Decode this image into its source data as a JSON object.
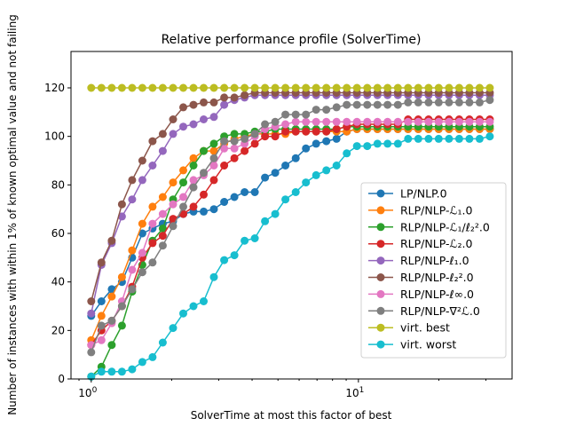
{
  "chart_data": {
    "type": "line",
    "title": "Relative performance profile (SolverTime)",
    "xlabel": "SolverTime at most this factor of best",
    "ylabel": "Number of instances with within 1% of known optimal value and not failing",
    "xscale": "log",
    "xlim": [
      0.84,
      37.6
    ],
    "ylim": [
      0,
      135
    ],
    "x_ticks": [
      {
        "value": 1,
        "label": "10",
        "exp": "0"
      },
      {
        "value": 10,
        "label": "10",
        "exp": "1"
      }
    ],
    "y_ticks": [
      0,
      20,
      40,
      60,
      80,
      100,
      120
    ],
    "grid": false,
    "legend_position": "lower-right",
    "x": [
      1.0,
      1.092,
      1.193,
      1.303,
      1.423,
      1.554,
      1.697,
      1.853,
      2.024,
      2.21,
      2.414,
      2.636,
      2.879,
      3.144,
      3.433,
      3.749,
      4.094,
      4.472,
      4.883,
      5.333,
      5.824,
      6.36,
      6.945,
      7.585,
      8.283,
      9.045,
      9.878,
      10.79,
      11.78,
      12.86,
      14.05,
      15.34,
      16.75,
      18.3,
      19.98,
      21.82,
      23.83,
      26.02,
      28.42,
      31.03
    ],
    "series": [
      {
        "name": "LP/NLP.0",
        "color": "#1f77b4",
        "values": [
          26,
          32,
          37,
          40,
          50,
          60,
          62,
          64,
          65,
          68,
          69,
          69,
          70,
          73,
          75,
          77,
          77,
          83,
          85,
          88,
          91,
          95,
          97,
          98,
          99,
          102,
          103,
          103,
          103,
          103,
          103,
          103,
          103,
          103,
          103,
          103,
          103,
          103,
          103,
          103
        ]
      },
      {
        "name": "RLP/NLP-ℒ₁.0",
        "color": "#ff7f0e",
        "values": [
          16,
          26,
          34,
          42,
          53,
          64,
          71,
          75,
          81,
          86,
          91,
          94,
          94,
          97,
          99,
          100,
          101,
          101,
          101,
          101,
          102,
          102,
          102,
          102,
          102,
          102,
          103,
          103,
          103,
          103,
          103,
          103,
          103,
          103,
          103,
          103,
          103,
          103,
          103,
          103
        ]
      },
      {
        "name": "RLP/NLP-ℒ₁/ℓ₂².0",
        "color": "#2ca02c",
        "values": [
          1,
          5,
          14,
          22,
          36,
          47,
          57,
          62,
          74,
          81,
          88,
          94,
          97,
          100,
          101,
          101,
          102,
          102,
          103,
          103,
          103,
          103,
          103,
          103,
          103,
          104,
          104,
          104,
          104,
          104,
          104,
          104,
          104,
          104,
          104,
          104,
          104,
          104,
          104,
          104
        ]
      },
      {
        "name": "RLP/NLP-ℒ₂.0",
        "color": "#d62728",
        "values": [
          14,
          20,
          24,
          30,
          38,
          50,
          56,
          59,
          66,
          68,
          71,
          76,
          82,
          88,
          91,
          94,
          97,
          100,
          100,
          102,
          102,
          102,
          102,
          102,
          103,
          104,
          105,
          105,
          105,
          105,
          105,
          107,
          107,
          107,
          107,
          107,
          107,
          107,
          107,
          107
        ]
      },
      {
        "name": "RLP/NLP-ℓ₁.0",
        "color": "#9467bd",
        "values": [
          27,
          47,
          56,
          67,
          74,
          82,
          88,
          94,
          101,
          104,
          105,
          107,
          108,
          113,
          115,
          116,
          117,
          117,
          117,
          117,
          117,
          117,
          117,
          117,
          117,
          117,
          117,
          117,
          117,
          117,
          117,
          117,
          117,
          117,
          117,
          117,
          117,
          117,
          117,
          117
        ]
      },
      {
        "name": "RLP/NLP-ℓ₂².0",
        "color": "#8c564b",
        "values": [
          32,
          48,
          57,
          72,
          82,
          90,
          98,
          101,
          107,
          112,
          113,
          114,
          114,
          116,
          116,
          117,
          118,
          118,
          118,
          118,
          118,
          118,
          118,
          118,
          118,
          118,
          118,
          118,
          118,
          118,
          118,
          118,
          118,
          118,
          118,
          118,
          118,
          118,
          118,
          118
        ]
      },
      {
        "name": "RLP/NLP-ℓ∞.0",
        "color": "#e377c2",
        "values": [
          14,
          16,
          23,
          32,
          45,
          52,
          64,
          68,
          72,
          75,
          82,
          84,
          88,
          95,
          95,
          97,
          100,
          103,
          104,
          105,
          106,
          106,
          106,
          106,
          106,
          106,
          106,
          106,
          106,
          106,
          106,
          106,
          106,
          106,
          106,
          106,
          106,
          106,
          106,
          106
        ]
      },
      {
        "name": "RLP/NLP-∇²ℒ.0",
        "color": "#7f7f7f",
        "values": [
          11,
          22,
          24,
          30,
          37,
          44,
          48,
          55,
          63,
          71,
          79,
          85,
          91,
          98,
          98,
          99,
          101,
          105,
          106,
          109,
          109,
          109,
          111,
          111,
          112,
          113,
          113,
          113,
          113,
          113,
          113,
          114,
          114,
          114,
          114,
          114,
          114,
          114,
          114,
          115
        ]
      },
      {
        "name": "virt. best",
        "color": "#bcbd22",
        "values": [
          120,
          120,
          120,
          120,
          120,
          120,
          120,
          120,
          120,
          120,
          120,
          120,
          120,
          120,
          120,
          120,
          120,
          120,
          120,
          120,
          120,
          120,
          120,
          120,
          120,
          120,
          120,
          120,
          120,
          120,
          120,
          120,
          120,
          120,
          120,
          120,
          120,
          120,
          120,
          120
        ]
      },
      {
        "name": "virt. worst",
        "color": "#17becf",
        "values": [
          1,
          3,
          3,
          3,
          4,
          7,
          9,
          15,
          21,
          27,
          30,
          32,
          42,
          49,
          51,
          57,
          58,
          65,
          68,
          74,
          77,
          81,
          84,
          86,
          88,
          93,
          96,
          96,
          97,
          97,
          97,
          99,
          99,
          99,
          99,
          99,
          99,
          99,
          99,
          100
        ]
      }
    ]
  }
}
